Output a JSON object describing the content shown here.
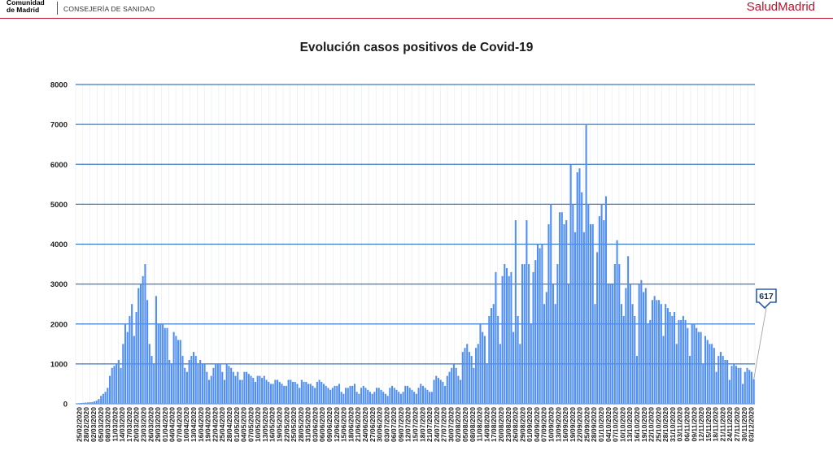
{
  "header": {
    "org_line1": "Comunidad",
    "org_line2": "de Madrid",
    "department": "CONSEJERÍA DE SANIDAD",
    "brand": "SaludMadrid"
  },
  "colors": {
    "bar": "#4f8ef7",
    "grid": "#3a78c8",
    "accent": "#c0102a",
    "callout": "#2a5db0"
  },
  "chart_data": {
    "type": "bar",
    "title": "Evolución casos positivos de Covid-19",
    "xlabel": "",
    "ylabel": "",
    "ylim": [
      0,
      8000
    ],
    "yticks": [
      0,
      1000,
      2000,
      3000,
      4000,
      5000,
      6000,
      7000,
      8000
    ],
    "grid": true,
    "start_date": "25/02/2020",
    "x_tick_labels": [
      "25/02/2020",
      "28/02/2020",
      "02/03/2020",
      "05/03/2020",
      "08/03/2020",
      "11/03/2020",
      "14/03/2020",
      "17/03/2020",
      "20/03/2020",
      "23/03/2020",
      "26/03/2020",
      "29/03/2020",
      "01/04/2020",
      "04/04/2020",
      "07/04/2020",
      "10/04/2020",
      "13/04/2020",
      "16/04/2020",
      "19/04/2020",
      "22/04/2020",
      "25/04/2020",
      "28/04/2020",
      "01/05/2020",
      "04/05/2020",
      "07/05/2020",
      "10/05/2020",
      "13/05/2020",
      "16/05/2020",
      "19/05/2020",
      "22/05/2020",
      "25/05/2020",
      "28/05/2020",
      "31/05/2020",
      "03/06/2020",
      "06/06/2020",
      "09/06/2020",
      "12/06/2020",
      "15/06/2020",
      "18/06/2020",
      "21/06/2020",
      "24/06/2020",
      "27/06/2020",
      "30/06/2020",
      "03/07/2020",
      "06/07/2020",
      "09/07/2020",
      "12/07/2020",
      "15/07/2020",
      "18/07/2020",
      "21/07/2020",
      "24/07/2020",
      "27/07/2020",
      "30/07/2020",
      "02/08/2020",
      "05/08/2020",
      "08/08/2020",
      "11/08/2020",
      "14/08/2020",
      "17/08/2020",
      "20/08/2020",
      "23/08/2020",
      "26/08/2020",
      "29/08/2020",
      "01/09/2020",
      "04/09/2020",
      "07/09/2020",
      "10/09/2020",
      "13/09/2020",
      "16/09/2020",
      "19/09/2020",
      "22/09/2020",
      "25/09/2020",
      "28/09/2020",
      "01/10/2020",
      "04/10/2020",
      "07/10/2020",
      "10/10/2020",
      "13/10/2020",
      "16/10/2020",
      "19/10/2020",
      "22/10/2020",
      "25/10/2020",
      "28/10/2020",
      "31/10/2020",
      "03/11/2020",
      "06/11/2020",
      "09/11/2020",
      "12/11/2020",
      "15/11/2020",
      "18/11/2020",
      "21/11/2020",
      "24/11/2020",
      "27/11/2020",
      "30/11/2020",
      "03/12/2020"
    ],
    "values": [
      10,
      15,
      20,
      25,
      30,
      35,
      40,
      45,
      60,
      80,
      120,
      200,
      250,
      300,
      400,
      700,
      900,
      950,
      1000,
      1100,
      900,
      1500,
      2000,
      1800,
      2200,
      2500,
      1700,
      2300,
      2900,
      3000,
      3200,
      3500,
      2600,
      1500,
      1200,
      1000,
      2700,
      2000,
      2000,
      2000,
      1900,
      1900,
      1100,
      1000,
      1800,
      1700,
      1600,
      1600,
      1200,
      900,
      800,
      1100,
      1200,
      1300,
      1200,
      1000,
      1100,
      1000,
      1000,
      800,
      600,
      700,
      900,
      1000,
      1000,
      1000,
      800,
      600,
      1000,
      950,
      900,
      800,
      700,
      800,
      600,
      600,
      800,
      800,
      750,
      700,
      650,
      550,
      700,
      700,
      650,
      700,
      600,
      550,
      500,
      500,
      600,
      600,
      550,
      500,
      450,
      450,
      600,
      600,
      550,
      550,
      500,
      400,
      600,
      550,
      550,
      500,
      500,
      450,
      400,
      550,
      600,
      550,
      500,
      450,
      400,
      350,
      400,
      450,
      450,
      500,
      300,
      250,
      400,
      400,
      450,
      450,
      500,
      300,
      250,
      400,
      450,
      400,
      350,
      300,
      250,
      300,
      400,
      400,
      350,
      300,
      250,
      200,
      400,
      450,
      400,
      350,
      300,
      250,
      300,
      450,
      450,
      400,
      350,
      300,
      250,
      400,
      500,
      450,
      400,
      350,
      300,
      300,
      600,
      700,
      650,
      600,
      550,
      450,
      700,
      800,
      900,
      1000,
      900,
      700,
      600,
      1300,
      1400,
      1500,
      1300,
      1200,
      900,
      1400,
      1500,
      2000,
      1800,
      1700,
      1000,
      2200,
      2400,
      2500,
      3300,
      2200,
      1500,
      3200,
      3500,
      3400,
      3200,
      3300,
      1800,
      4600,
      2200,
      1500,
      3500,
      3500,
      4600,
      3500,
      2000,
      3300,
      3600,
      4000,
      3900,
      4000,
      2500,
      2800,
      4500,
      5000,
      3000,
      2500,
      3500,
      4800,
      4800,
      4500,
      4600,
      3000,
      6000,
      5000,
      4300,
      5800,
      5900,
      5300,
      4300,
      7000,
      5000,
      4500,
      4500,
      2500,
      3800,
      4700,
      5000,
      4600,
      5200,
      3000,
      3000,
      3000,
      3500,
      4100,
      3500,
      2500,
      2200,
      2900,
      3700,
      3000,
      2500,
      2200,
      1200,
      3000,
      3100,
      2800,
      2900,
      2000,
      2100,
      2600,
      2700,
      2600,
      2600,
      2500,
      1700,
      2500,
      2400,
      2300,
      2200,
      2300,
      1500,
      2100,
      2100,
      2200,
      2100,
      1900,
      1200,
      2000,
      2000,
      1900,
      1800,
      1800,
      1000,
      1700,
      1600,
      1500,
      1500,
      1400,
      800,
      1200,
      1300,
      1200,
      1100,
      1100,
      600,
      950,
      1000,
      950,
      900,
      900,
      500,
      800,
      900,
      850,
      800,
      617
    ],
    "callout": {
      "label": "617",
      "date": "03/12/2020",
      "value": 617
    }
  }
}
